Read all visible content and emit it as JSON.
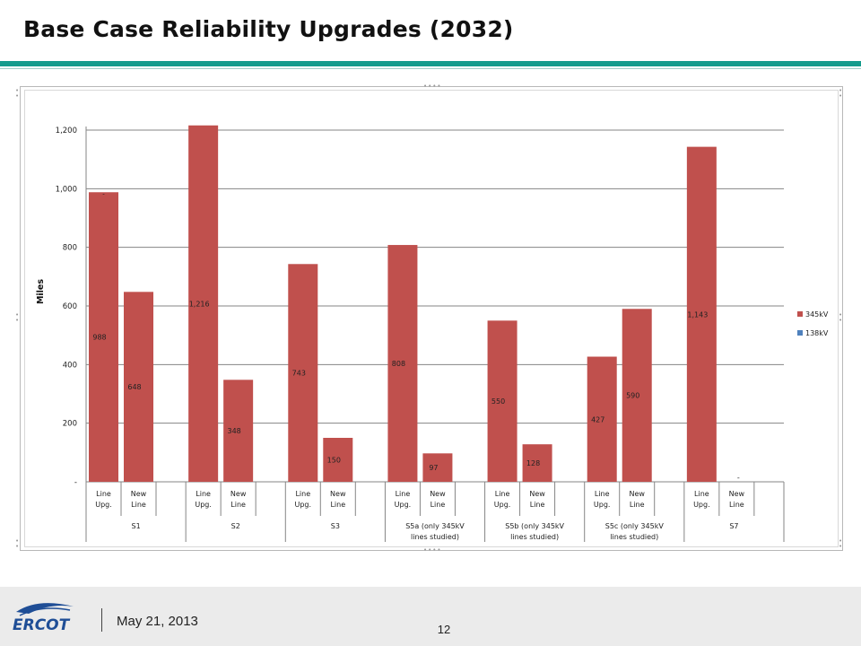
{
  "slide": {
    "title": "Base Case Reliability Upgrades (2032)",
    "date": "May 21, 2013",
    "page_number": "12",
    "logo_text": "ERCOT"
  },
  "colors": {
    "accent_rule": "#149c8c",
    "series_345": "#c0504d",
    "series_138": "#4f81bd",
    "logo_blue": "#1f4e96"
  },
  "chart_data": {
    "type": "bar",
    "ylabel": "Miles",
    "ylim": [
      0,
      1200
    ],
    "yticks": [
      {
        "value": 0,
        "label": "-"
      },
      {
        "value": 200,
        "label": "200"
      },
      {
        "value": 400,
        "label": "400"
      },
      {
        "value": 600,
        "label": "600"
      },
      {
        "value": 800,
        "label": "800"
      },
      {
        "value": 1000,
        "label": "1,000"
      },
      {
        "value": 1200,
        "label": "1,200"
      }
    ],
    "grid": true,
    "legend_position": "right",
    "groups": [
      {
        "label_lines": [
          "S1"
        ],
        "categories": [
          [
            "Line",
            "Upg."
          ],
          [
            "New",
            "Line"
          ]
        ]
      },
      {
        "label_lines": [
          "S2"
        ],
        "categories": [
          [
            "Line",
            "Upg."
          ],
          [
            "New",
            "Line"
          ]
        ]
      },
      {
        "label_lines": [
          "S3"
        ],
        "categories": [
          [
            "Line",
            "Upg."
          ],
          [
            "New",
            "Line"
          ]
        ]
      },
      {
        "label_lines": [
          "S5a (only 345kV",
          "lines studied)"
        ],
        "categories": [
          [
            "Line",
            "Upg."
          ],
          [
            "New",
            "Line"
          ]
        ]
      },
      {
        "label_lines": [
          "S5b (only 345kV",
          "lines studied)"
        ],
        "categories": [
          [
            "Line",
            "Upg."
          ],
          [
            "New",
            "Line"
          ]
        ]
      },
      {
        "label_lines": [
          "S5c (only 345kV",
          "lines studied)"
        ],
        "categories": [
          [
            "Line",
            "Upg."
          ],
          [
            "New",
            "Line"
          ]
        ]
      },
      {
        "label_lines": [
          "S7"
        ],
        "categories": [
          [
            "Line",
            "Upg."
          ],
          [
            "New",
            "Line"
          ]
        ]
      }
    ],
    "series": [
      {
        "name": "345kV",
        "values": [
          988,
          648,
          1216,
          348,
          743,
          150,
          808,
          97,
          550,
          128,
          427,
          590,
          1143,
          0
        ],
        "labels": [
          "988",
          "648",
          "1,216",
          "348",
          "743",
          "150",
          "808",
          "97",
          "550",
          "128",
          "427",
          "590",
          "1,143",
          "-"
        ]
      },
      {
        "name": "138kV",
        "values": [
          0,
          0,
          0,
          0,
          0,
          0,
          0,
          0,
          0,
          0,
          0,
          0,
          0,
          0
        ],
        "labels": [
          "-",
          "",
          "",
          "",
          "",
          "",
          "",
          "",
          "",
          "",
          "",
          "",
          "",
          ""
        ]
      }
    ]
  }
}
